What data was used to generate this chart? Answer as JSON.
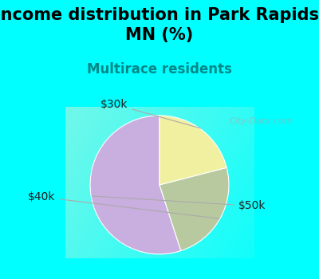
{
  "title": "Income distribution in Park Rapids,\nMN (%)",
  "subtitle": "Multirace residents",
  "slices": [
    {
      "label": "$50k",
      "value": 55,
      "color": "#c9aee0"
    },
    {
      "label": "$40k",
      "value": 24,
      "color": "#b8c9a0"
    },
    {
      "label": "$30k",
      "value": 21,
      "color": "#f0f0a0"
    }
  ],
  "start_angle": 90,
  "bg_color_top": "#00FFFF",
  "title_fontsize": 15,
  "subtitle_color": "#008888",
  "subtitle_fontsize": 12,
  "label_fontsize": 10,
  "watermark": "City-Data.com",
  "label_positions": {
    "$50k": [
      1.28,
      -0.3
    ],
    "$40k": [
      -1.52,
      -0.18
    ],
    "$30k": [
      -0.55,
      1.05
    ]
  }
}
